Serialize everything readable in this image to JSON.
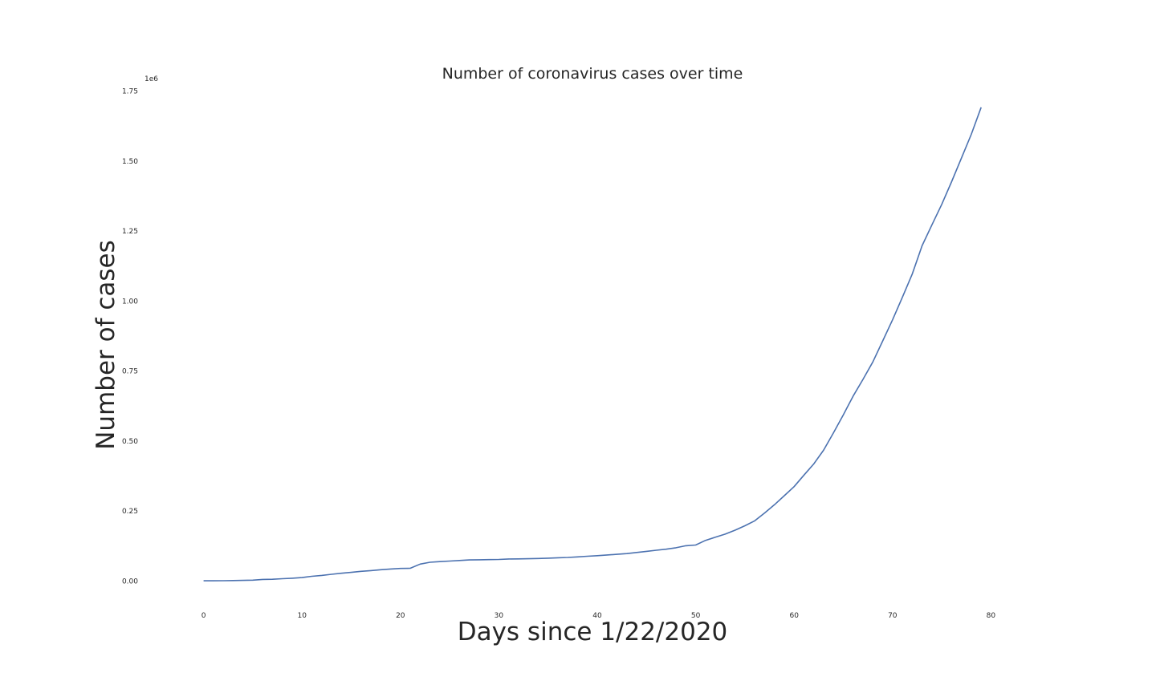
{
  "chart_data": {
    "type": "line",
    "title": "Number of coronavirus cases over time",
    "xlabel": "Days since 1/22/2020",
    "ylabel": "Number of cases",
    "y_offset_text": "1e6",
    "xlim": [
      -6,
      86
    ],
    "ylim": [
      -0.085,
      1.76
    ],
    "y_scale": 1000000,
    "grid": false,
    "x_ticks": [
      0,
      10,
      20,
      30,
      40,
      50,
      60,
      70,
      80
    ],
    "x_tick_labels": [
      "0",
      "10",
      "20",
      "30",
      "40",
      "50",
      "60",
      "70",
      "80"
    ],
    "y_ticks": [
      0,
      0.25,
      0.5,
      0.75,
      1.0,
      1.25,
      1.5,
      1.75
    ],
    "y_tick_labels": [
      "0.00",
      "0.25",
      "0.50",
      "0.75",
      "1.00",
      "1.25",
      "1.50",
      "1.75"
    ],
    "series": [
      {
        "color": "#4c72b0",
        "x": [
          0,
          1,
          2,
          3,
          4,
          5,
          6,
          7,
          8,
          9,
          10,
          11,
          12,
          13,
          14,
          15,
          16,
          17,
          18,
          19,
          20,
          21,
          22,
          23,
          24,
          25,
          26,
          27,
          28,
          29,
          30,
          31,
          32,
          33,
          34,
          35,
          36,
          37,
          38,
          39,
          40,
          41,
          42,
          43,
          44,
          45,
          46,
          47,
          48,
          49,
          50,
          51,
          52,
          53,
          54,
          55,
          56,
          57,
          58,
          59,
          60,
          61,
          62,
          63,
          64,
          65,
          66,
          67,
          68,
          69,
          70,
          71,
          72,
          73,
          74,
          75,
          76,
          77,
          78,
          79
        ],
        "y": [
          555,
          654,
          941,
          1434,
          2118,
          2927,
          5578,
          6166,
          8234,
          9927,
          12038,
          16787,
          19881,
          23892,
          27635,
          30794,
          34391,
          37120,
          40150,
          42762,
          44802,
          45221,
          60368,
          66885,
          69030,
          71224,
          73258,
          75136,
          75639,
          76197,
          76819,
          78572,
          78958,
          79561,
          80406,
          81388,
          82746,
          84112,
          86011,
          88369,
          90306,
          92840,
          95120,
          97886,
          101801,
          105847,
          109821,
          113590,
          118620,
          125875,
          128343,
          145193,
          156097,
          167449,
          181531,
          197146,
          214910,
          242713,
          272167,
          304528,
          336953,
          378235,
          418045,
          467653,
          529591,
          593291,
          660706,
          720117,
          782389,
          857487,
          932605,
          1013466,
          1095917,
          1197405,
          1272115,
          1345101,
          1426096,
          1511104,
          1595350,
          1691719
        ]
      }
    ]
  }
}
